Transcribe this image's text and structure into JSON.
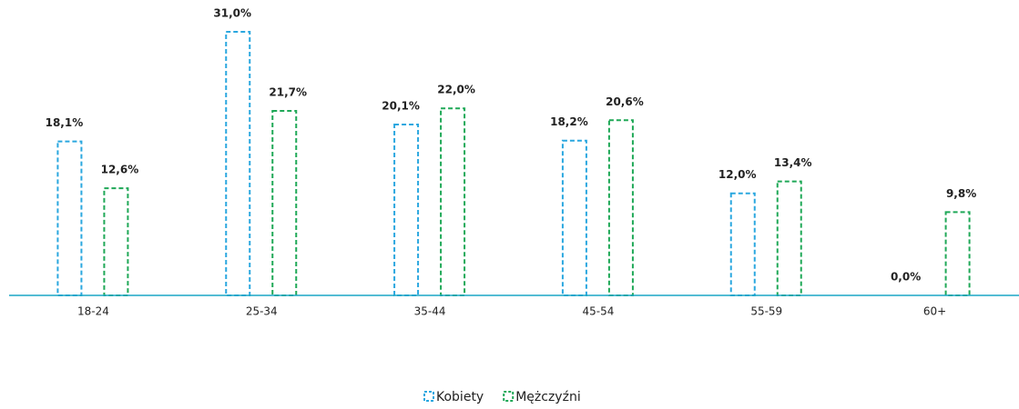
{
  "chart_data": {
    "type": "bar",
    "categories": [
      "18-24",
      "25-34",
      "35-44",
      "45-54",
      "55-59",
      "60+"
    ],
    "series": [
      {
        "name": "Kobiety",
        "color": "#2aa7df",
        "values": [
          18.1,
          31.0,
          20.1,
          18.2,
          12.0,
          0.0
        ],
        "value_labels": [
          "18,1%",
          "31,0%",
          "20,1%",
          "18,2%",
          "12,0%",
          "0,0%"
        ]
      },
      {
        "name": "Mężczyźni",
        "color": "#1fa857",
        "values": [
          12.6,
          21.7,
          22.0,
          20.6,
          13.4,
          9.8
        ],
        "value_labels": [
          "12,6%",
          "21,7%",
          "22,0%",
          "20,6%",
          "13,4%",
          "9,8%"
        ]
      }
    ],
    "ylim": [
      0,
      31
    ],
    "legend": "bottom"
  }
}
